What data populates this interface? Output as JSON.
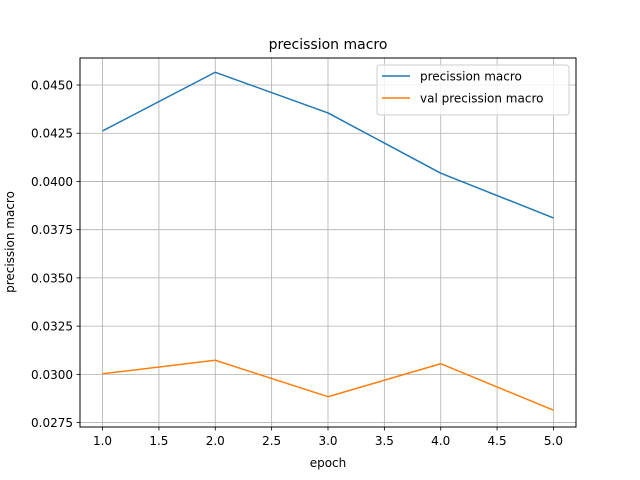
{
  "chart_data": {
    "type": "line",
    "title": "precission macro",
    "xlabel": "epoch",
    "ylabel": "precission macro",
    "xlim": [
      0.8,
      5.2
    ],
    "ylim": [
      0.02727,
      0.0464
    ],
    "grid": true,
    "legend": "top-right",
    "x": [
      1.0,
      2.0,
      3.0,
      4.0,
      5.0
    ],
    "xticks": [
      1.0,
      1.5,
      2.0,
      2.5,
      3.0,
      3.5,
      4.0,
      4.5,
      5.0
    ],
    "xtick_labels": [
      "1.0",
      "1.5",
      "2.0",
      "2.5",
      "3.0",
      "3.5",
      "4.0",
      "4.5",
      "5.0"
    ],
    "yticks": [
      0.0275,
      0.03,
      0.0325,
      0.035,
      0.0375,
      0.04,
      0.0425,
      0.045
    ],
    "ytick_labels": [
      "0.0275",
      "0.0300",
      "0.0325",
      "0.0350",
      "0.0375",
      "0.0400",
      "0.0425",
      "0.0450"
    ],
    "series": [
      {
        "name": "precission macro",
        "color": "#1f77b4",
        "values": [
          0.04262,
          0.04566,
          0.04355,
          0.04043,
          0.03811
        ]
      },
      {
        "name": "val precission macro",
        "color": "#ff7f0e",
        "values": [
          0.03003,
          0.03073,
          0.02884,
          0.03055,
          0.02814
        ]
      }
    ]
  }
}
